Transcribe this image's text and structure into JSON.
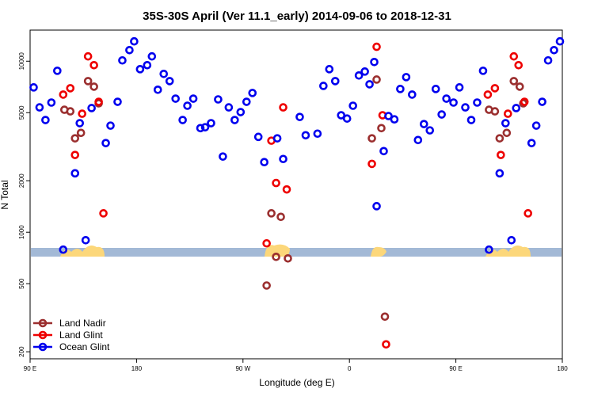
{
  "chart_data": {
    "type": "scatter",
    "title": "35S-30S April (Ver 11.1_early)   2014-09-06 to 2018-12-31",
    "x_label": "Longitude (deg E)",
    "y_label": "N Total",
    "log_y": true,
    "xlim": [
      90,
      540
    ],
    "xticks": [
      {
        "value": 90,
        "label": "90 E"
      },
      180,
      {
        "value": 270,
        "label": "90 W"
      },
      {
        "value": 360,
        "label": "0"
      },
      {
        "value": 450,
        "label": "90 E"
      },
      {
        "value": 540,
        "label": "180"
      }
    ],
    "ylim": [
      182,
      15200
    ],
    "yticks": [
      200,
      500,
      1000,
      2000,
      5000,
      10000
    ],
    "legend": "lower left",
    "series": [
      {
        "name": "Land Nadir",
        "color": "#9b2f2f",
        "x": [
          119,
          124,
          128,
          133,
          139,
          144,
          148,
          290,
          294,
          298,
          302,
          308,
          379,
          383,
          387,
          390,
          478,
          483,
          487,
          493,
          499,
          504,
          507
        ],
        "values": [
          5200,
          5090,
          3540,
          3810,
          7650,
          7100,
          5670,
          488,
          1290,
          718,
          1230,
          703,
          3540,
          7810,
          4060,
          321,
          5200,
          5090,
          3540,
          3810,
          7650,
          7100,
          5670
        ]
      },
      {
        "name": "Land Glint",
        "color": "#ee0000",
        "x": [
          118,
          124,
          128,
          134,
          139,
          144,
          148,
          152,
          290,
          294,
          298,
          304,
          307,
          379,
          383,
          388,
          391,
          477,
          483,
          488,
          494,
          499,
          503,
          508,
          511
        ],
        "values": [
          6380,
          6950,
          2830,
          4930,
          10670,
          9480,
          5790,
          1290,
          861,
          3430,
          1940,
          5370,
          1780,
          2510,
          12140,
          4830,
          221,
          6380,
          6950,
          2830,
          4930,
          10670,
          9480,
          5790,
          1290
        ]
      },
      {
        "name": "Ocean Glint",
        "color": "#0000ee",
        "x": [
          93,
          98,
          103,
          108,
          113,
          118,
          128,
          132,
          137,
          142,
          154,
          158,
          164,
          168,
          174,
          178,
          183,
          189,
          193,
          198,
          203,
          208,
          213,
          219,
          223,
          228,
          234,
          238,
          243,
          249,
          253,
          258,
          263,
          268,
          273,
          278,
          283,
          288,
          299,
          304,
          318,
          323,
          333,
          338,
          343,
          348,
          353,
          358,
          363,
          368,
          373,
          377,
          381,
          383,
          389,
          393,
          398,
          403,
          408,
          413,
          418,
          423,
          428,
          433,
          438,
          442,
          448,
          453,
          458,
          463,
          468,
          473,
          478,
          487,
          492,
          497,
          501,
          514,
          518,
          523,
          528,
          533,
          538
        ],
        "values": [
          7030,
          5370,
          4530,
          5730,
          8790,
          791,
          2210,
          4340,
          898,
          5320,
          3320,
          4200,
          5790,
          10110,
          11610,
          13060,
          8980,
          9480,
          10670,
          6810,
          8430,
          7650,
          6040,
          4530,
          5490,
          6040,
          4060,
          4110,
          4340,
          5980,
          2770,
          5370,
          4530,
          5040,
          5790,
          6520,
          3610,
          2570,
          3540,
          2680,
          4720,
          3690,
          3770,
          7170,
          8980,
          7650,
          4830,
          4620,
          5490,
          8250,
          8700,
          7330,
          9890,
          1420,
          2980,
          4780,
          4570,
          6880,
          8070,
          6380,
          3460,
          4290,
          3940,
          6880,
          4880,
          6040,
          5730,
          7030,
          5370,
          4530,
          5730,
          8790,
          791,
          2210,
          4340,
          898,
          5320,
          3320,
          4200,
          5790,
          10110,
          11610,
          13060
        ]
      }
    ]
  }
}
